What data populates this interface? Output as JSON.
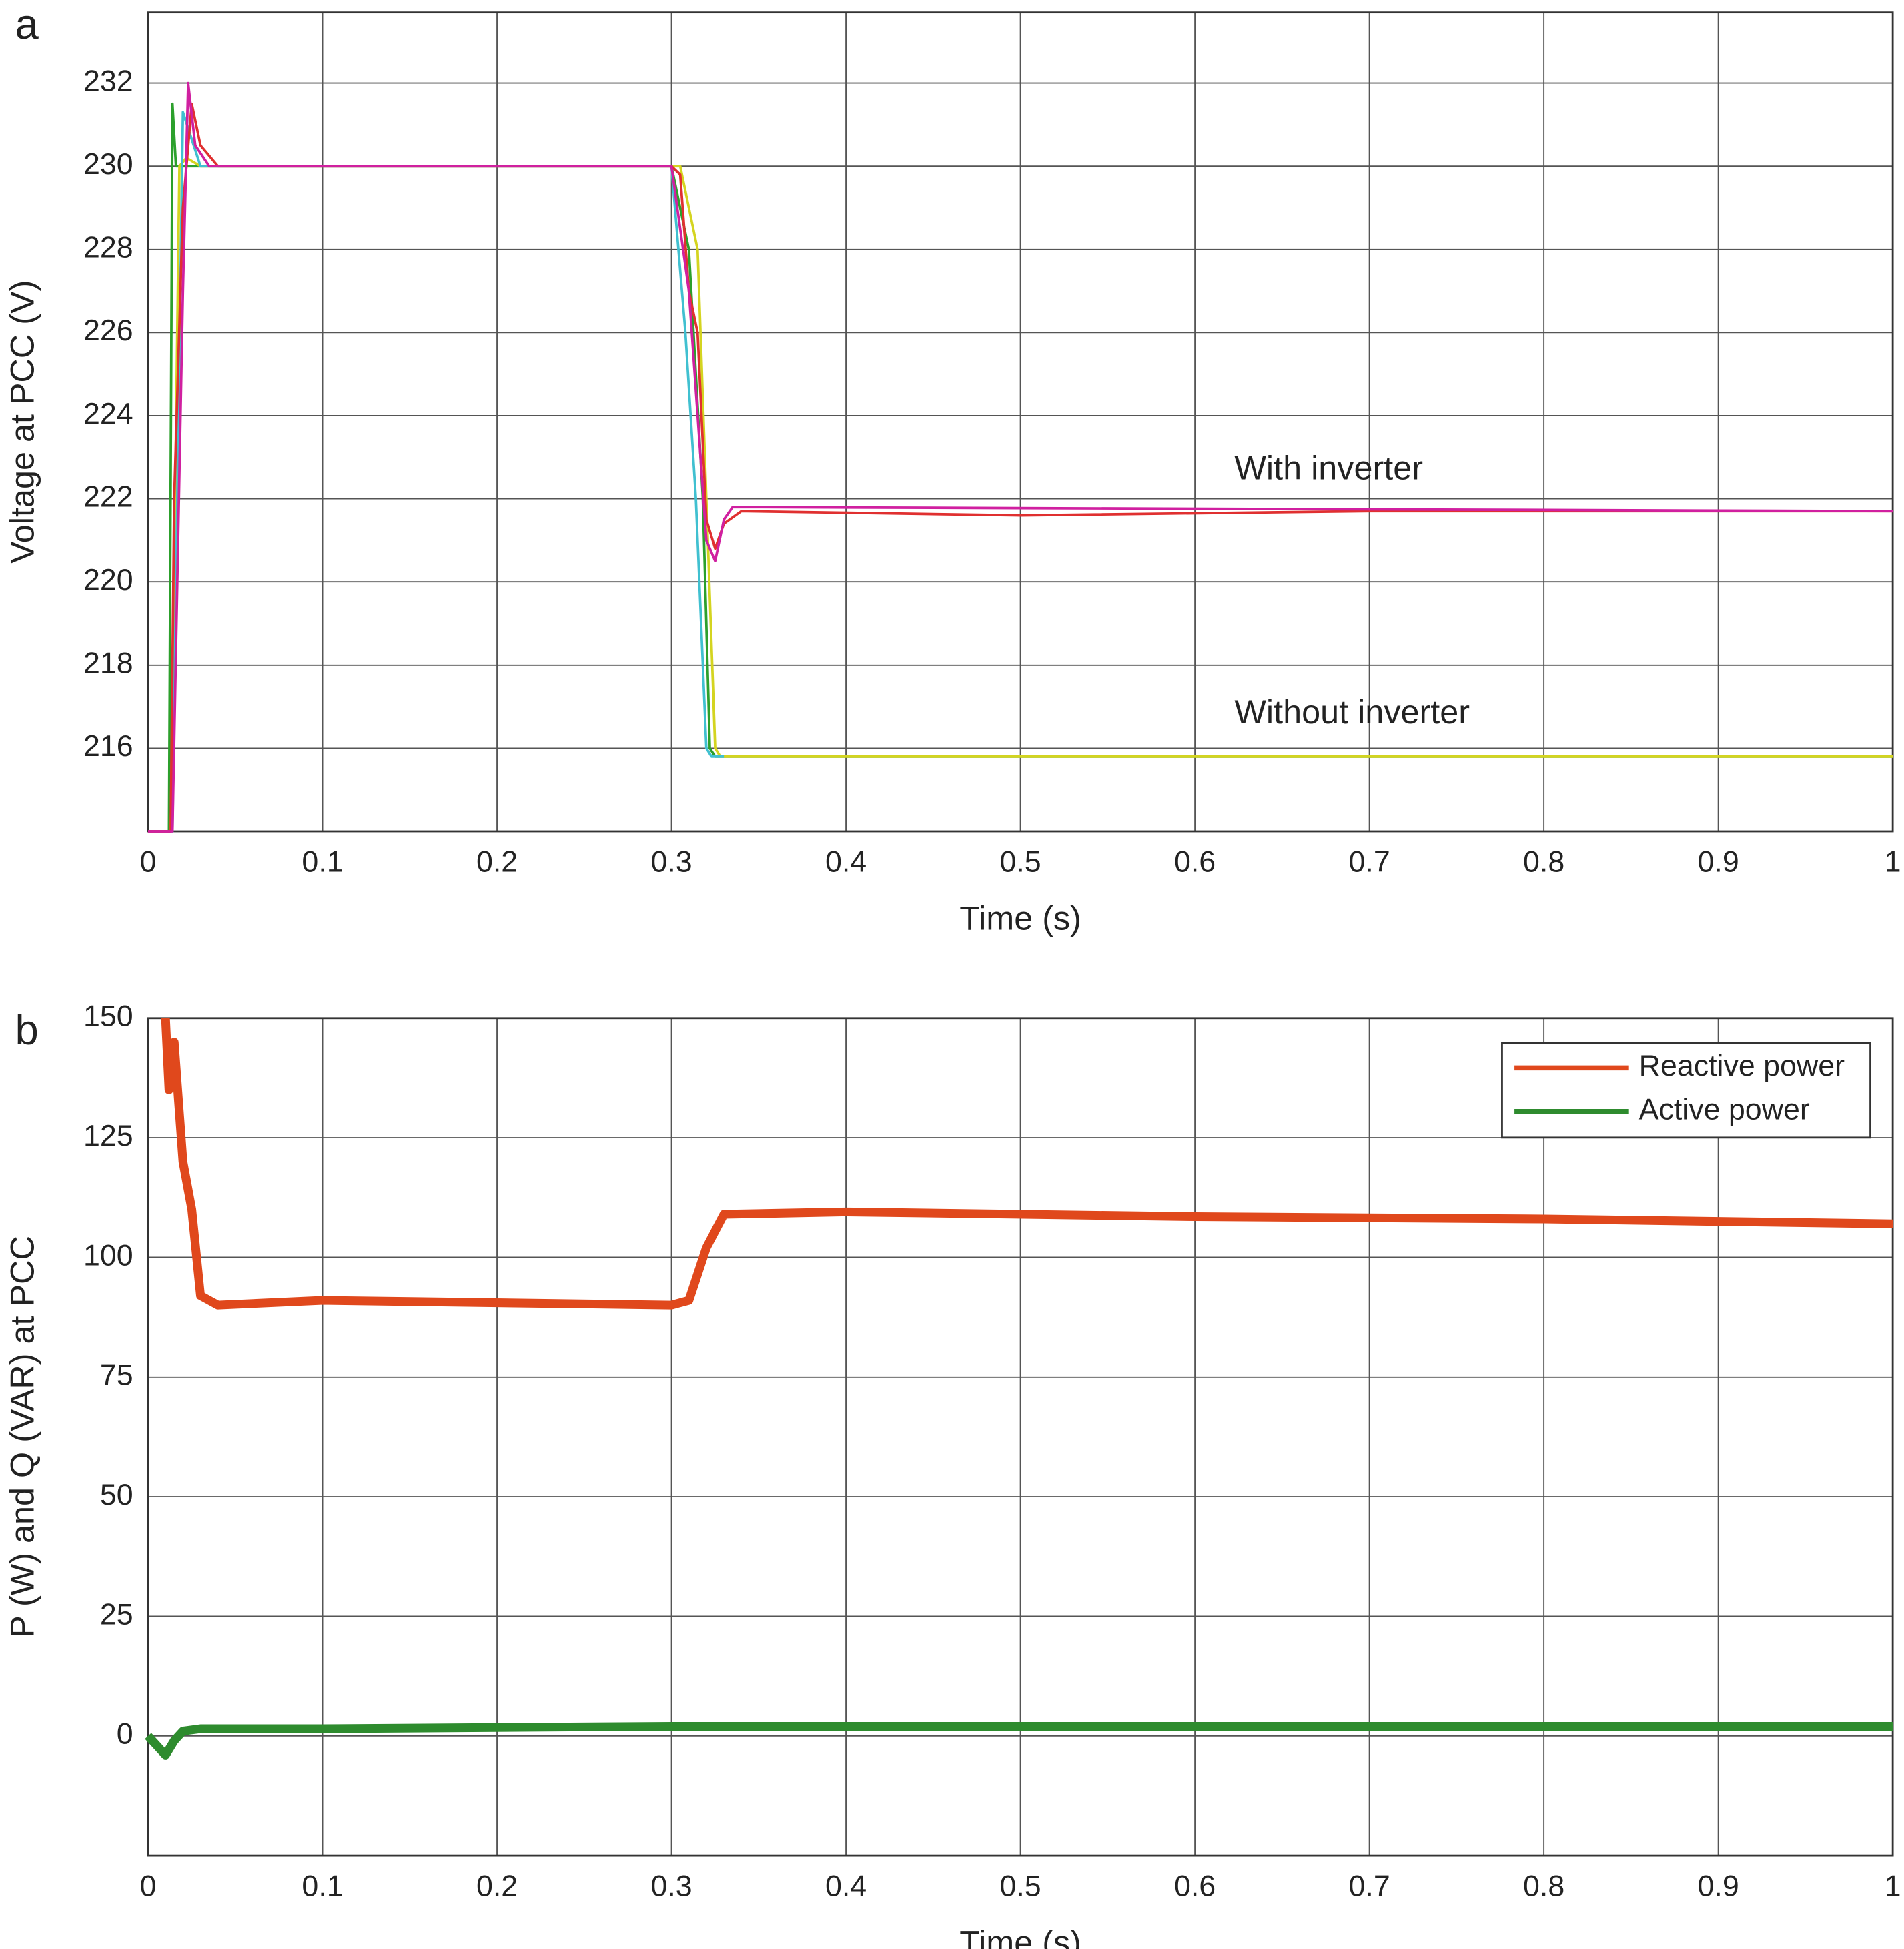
{
  "chart_data": [
    {
      "type": "line",
      "panel_label": "a",
      "xlabel": "Time (s)",
      "ylabel": "Voltage at PCC (V)",
      "xlim": [
        0,
        1
      ],
      "xticks": [
        0,
        0.1,
        0.2,
        0.3,
        0.4,
        0.5,
        0.6,
        0.7,
        0.8,
        0.9,
        1
      ],
      "ylim": [
        214,
        233.7
      ],
      "yticks": [
        216,
        218,
        220,
        222,
        224,
        226,
        228,
        230,
        232
      ],
      "grid": true,
      "annotations": [
        "With inverter",
        "Without inverter"
      ],
      "series": [
        {
          "color": "#2ca02c",
          "x": [
            0,
            0.012,
            0.014,
            0.016,
            0.02,
            0.04,
            0.3,
            0.31,
            0.318,
            0.322,
            0.325,
            1.0
          ],
          "values": [
            214,
            214,
            231.5,
            230,
            230,
            230,
            230,
            228,
            222,
            216,
            215.8,
            215.8
          ]
        },
        {
          "color": "#d4d420",
          "x": [
            0,
            0.013,
            0.018,
            0.022,
            0.03,
            0.305,
            0.315,
            0.32,
            0.325,
            0.328,
            1.0
          ],
          "values": [
            214,
            214,
            230,
            230.2,
            230,
            230,
            228,
            222,
            216,
            215.8,
            215.8
          ]
        },
        {
          "color": "#40c0d0",
          "x": [
            0,
            0.014,
            0.02,
            0.03,
            0.3,
            0.308,
            0.314,
            0.32,
            0.323,
            0.33
          ],
          "values": [
            214,
            214,
            231.3,
            230,
            230,
            226,
            222,
            216,
            215.8,
            215.8
          ]
        },
        {
          "color": "#e03030",
          "x": [
            0,
            0.013,
            0.015,
            0.02,
            0.025,
            0.03,
            0.04,
            0.3,
            0.305,
            0.31,
            0.315,
            0.32,
            0.325,
            0.33,
            0.34,
            0.5,
            0.7,
            1.0
          ],
          "values": [
            214,
            214,
            222,
            229,
            231.5,
            230.5,
            230,
            230,
            229.8,
            227,
            226,
            221.5,
            220.8,
            221.4,
            221.7,
            221.6,
            221.7,
            221.7
          ]
        },
        {
          "color": "#d020a0",
          "x": [
            0,
            0.014,
            0.02,
            0.023,
            0.027,
            0.035,
            0.3,
            0.31,
            0.315,
            0.32,
            0.325,
            0.33,
            0.335,
            1.0
          ],
          "values": [
            214,
            214,
            227,
            232,
            230.5,
            230,
            230,
            227,
            224,
            221,
            220.5,
            221.5,
            221.8,
            221.7
          ]
        }
      ]
    },
    {
      "type": "line",
      "panel_label": "b",
      "xlabel": "Time (s)",
      "ylabel": "P (W) and Q (VAR) at PCC",
      "xlim": [
        0,
        1
      ],
      "xticks": [
        0,
        0.1,
        0.2,
        0.3,
        0.4,
        0.5,
        0.6,
        0.7,
        0.8,
        0.9,
        1
      ],
      "ylim": [
        -25,
        150
      ],
      "yticks": [
        0,
        25,
        50,
        75,
        100,
        125,
        150
      ],
      "grid": true,
      "legend": "upper right",
      "series": [
        {
          "name": "Reactive power",
          "color": "#e0481c",
          "x": [
            0.01,
            0.012,
            0.015,
            0.02,
            0.025,
            0.03,
            0.04,
            0.1,
            0.2,
            0.3,
            0.31,
            0.32,
            0.33,
            0.4,
            0.6,
            0.8,
            1.0
          ],
          "values": [
            150,
            135,
            145,
            120,
            110,
            92,
            90,
            91,
            90.5,
            90,
            91,
            102,
            109,
            109.5,
            108.5,
            108,
            107
          ]
        },
        {
          "name": "Active power",
          "color": "#2e8b2e",
          "x": [
            0,
            0.005,
            0.01,
            0.015,
            0.02,
            0.03,
            0.1,
            0.3,
            0.5,
            0.7,
            1.0
          ],
          "values": [
            0,
            -2,
            -4,
            -1,
            1,
            1.5,
            1.5,
            2,
            2,
            2,
            2
          ]
        }
      ]
    }
  ]
}
